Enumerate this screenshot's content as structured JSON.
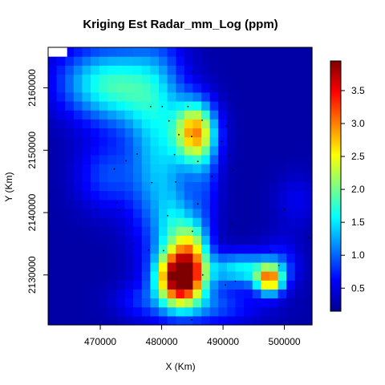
{
  "chart_data": {
    "type": "heatmap",
    "title": "Kriging Est Radar_mm_Log (ppm)",
    "xlabel": "X (Km)",
    "ylabel": "Y (Km)",
    "xlim": [
      461500,
      504500
    ],
    "ylim": [
      2122000,
      2166500
    ],
    "x_ticks": [
      470000,
      480000,
      490000,
      500000
    ],
    "x_tick_labels": [
      "470000",
      "480000",
      "490000",
      "500000"
    ],
    "y_ticks": [
      2130000,
      2140000,
      2150000,
      2160000
    ],
    "y_tick_labels": [
      "2130000",
      "2140000",
      "2150000",
      "2160000"
    ],
    "grid_cols": 31,
    "grid_rows": 31,
    "colorscale": [
      "#00008f",
      "#0000ff",
      "#007fff",
      "#00ffff",
      "#7fff7f",
      "#ffff00",
      "#ff7f00",
      "#ff0000",
      "#7f0000"
    ],
    "zlim": [
      0.15,
      3.95
    ],
    "colorbar_ticks": [
      0.5,
      1.0,
      1.5,
      2.0,
      2.5,
      3.0,
      3.5
    ],
    "colorbar_tick_labels": [
      "0.5",
      "1.0",
      "1.5",
      "2.0",
      "2.5",
      "3.0",
      "3.5"
    ],
    "no_data_region": {
      "x": [
        461500,
        464600
      ],
      "y": [
        2165000,
        2166500
      ]
    },
    "field_model": {
      "base": 0.25,
      "components": [
        {
          "x": 483200,
          "y": 2129500,
          "sx": 2600,
          "sy": 2800,
          "amp": 3.6
        },
        {
          "x": 485200,
          "y": 2134500,
          "sx": 1800,
          "sy": 3000,
          "amp": 1.3
        },
        {
          "x": 482500,
          "y": 2135500,
          "sx": 2200,
          "sy": 5000,
          "amp": 1.0
        },
        {
          "x": 485500,
          "y": 2153000,
          "sx": 2300,
          "sy": 3400,
          "amp": 2.4
        },
        {
          "x": 497600,
          "y": 2129300,
          "sx": 1500,
          "sy": 1600,
          "amp": 2.3
        },
        {
          "x": 493000,
          "y": 2131000,
          "sx": 4000,
          "sy": 1900,
          "amp": 1.3
        },
        {
          "x": 499500,
          "y": 2132000,
          "sx": 2200,
          "sy": 3000,
          "amp": 0.4
        },
        {
          "x": 479500,
          "y": 2150000,
          "sx": 3300,
          "sy": 12000,
          "amp": 1.1
        },
        {
          "x": 474000,
          "y": 2160000,
          "sx": 4500,
          "sy": 4500,
          "amp": 1.1
        },
        {
          "x": 468000,
          "y": 2161000,
          "sx": 4500,
          "sy": 4000,
          "amp": 0.8
        },
        {
          "x": 471000,
          "y": 2146000,
          "sx": 3500,
          "sy": 4000,
          "amp": 0.6
        },
        {
          "x": 487000,
          "y": 2145000,
          "sx": 1800,
          "sy": 6000,
          "amp": 0.5
        },
        {
          "x": 487000,
          "y": 2125000,
          "sx": 6000,
          "sy": 2200,
          "amp": 0.7
        },
        {
          "x": 476000,
          "y": 2126000,
          "sx": 3000,
          "sy": 2000,
          "amp": 0.3
        },
        {
          "x": 502000,
          "y": 2142000,
          "sx": 2500,
          "sy": 3000,
          "amp": 0.3
        }
      ]
    },
    "sample_points": [
      {
        "x": 485000,
        "y": 2162600
      },
      {
        "x": 478200,
        "y": 2157000
      },
      {
        "x": 480100,
        "y": 2157000
      },
      {
        "x": 484300,
        "y": 2157000
      },
      {
        "x": 481200,
        "y": 2154700
      },
      {
        "x": 486600,
        "y": 2154800
      },
      {
        "x": 490500,
        "y": 2153900
      },
      {
        "x": 482800,
        "y": 2152500
      },
      {
        "x": 484900,
        "y": 2152200
      },
      {
        "x": 489800,
        "y": 2151400
      },
      {
        "x": 476000,
        "y": 2149400
      },
      {
        "x": 482100,
        "y": 2149300
      },
      {
        "x": 491000,
        "y": 2149200
      },
      {
        "x": 474200,
        "y": 2148300
      },
      {
        "x": 485900,
        "y": 2148200
      },
      {
        "x": 472300,
        "y": 2147000
      },
      {
        "x": 491700,
        "y": 2146800
      },
      {
        "x": 488200,
        "y": 2145800
      },
      {
        "x": 478400,
        "y": 2144800
      },
      {
        "x": 482300,
        "y": 2144900
      },
      {
        "x": 472700,
        "y": 2141600
      },
      {
        "x": 485900,
        "y": 2141400
      },
      {
        "x": 469300,
        "y": 2140500
      },
      {
        "x": 473000,
        "y": 2140400
      },
      {
        "x": 500000,
        "y": 2140500
      },
      {
        "x": 481000,
        "y": 2139500
      },
      {
        "x": 491300,
        "y": 2138200
      },
      {
        "x": 485000,
        "y": 2137000
      },
      {
        "x": 503900,
        "y": 2136000
      },
      {
        "x": 489800,
        "y": 2136000
      },
      {
        "x": 475500,
        "y": 2135000
      },
      {
        "x": 477900,
        "y": 2134000
      },
      {
        "x": 480300,
        "y": 2133900
      },
      {
        "x": 497700,
        "y": 2133800
      },
      {
        "x": 499100,
        "y": 2131500
      },
      {
        "x": 486700,
        "y": 2130000
      },
      {
        "x": 492000,
        "y": 2129000
      },
      {
        "x": 490400,
        "y": 2128400
      },
      {
        "x": 484900,
        "y": 2122800
      }
    ]
  }
}
